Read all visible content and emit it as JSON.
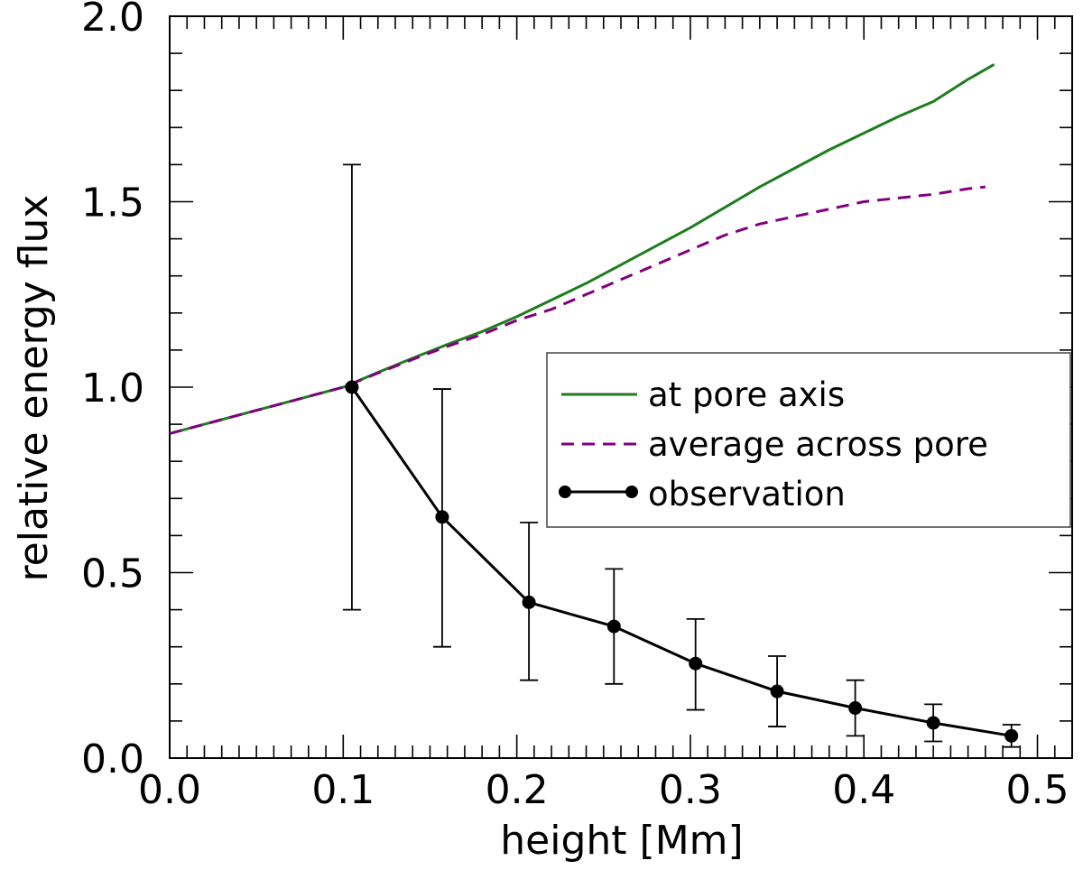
{
  "chart_data": {
    "type": "line",
    "title": "",
    "xlabel": "height [Mm]",
    "ylabel": "relative energy flux",
    "xlim": [
      0.0,
      0.52
    ],
    "ylim": [
      0.0,
      2.0
    ],
    "xticks": [
      0.0,
      0.1,
      0.2,
      0.3,
      0.4,
      0.5
    ],
    "xtick_labels": [
      "0.0",
      "0.1",
      "0.2",
      "0.3",
      "0.4",
      "0.5"
    ],
    "yticks": [
      0.0,
      0.5,
      1.0,
      1.5,
      2.0
    ],
    "ytick_labels": [
      "0.0",
      "0.5",
      "1.0",
      "1.5",
      "2.0"
    ],
    "x_minor_step": 0.01,
    "y_minor_step": 0.1,
    "grid": false,
    "legend_position": "right",
    "series": [
      {
        "name": "at pore axis",
        "color": "#1e7d1e",
        "style": "solid",
        "x": [
          0.0,
          0.02,
          0.04,
          0.06,
          0.08,
          0.1,
          0.12,
          0.14,
          0.16,
          0.18,
          0.2,
          0.22,
          0.24,
          0.26,
          0.28,
          0.3,
          0.32,
          0.34,
          0.36,
          0.38,
          0.4,
          0.42,
          0.44,
          0.46,
          0.475
        ],
        "values": [
          0.875,
          0.9,
          0.925,
          0.95,
          0.975,
          1.0,
          1.04,
          1.078,
          1.115,
          1.15,
          1.19,
          1.235,
          1.28,
          1.33,
          1.38,
          1.43,
          1.485,
          1.54,
          1.59,
          1.64,
          1.685,
          1.73,
          1.77,
          1.83,
          1.87
        ]
      },
      {
        "name": "average across pore",
        "color": "#800080",
        "style": "dashed",
        "x": [
          0.0,
          0.02,
          0.04,
          0.06,
          0.08,
          0.1,
          0.12,
          0.14,
          0.16,
          0.18,
          0.2,
          0.22,
          0.24,
          0.26,
          0.28,
          0.3,
          0.32,
          0.34,
          0.36,
          0.38,
          0.4,
          0.42,
          0.44,
          0.46,
          0.47
        ],
        "values": [
          0.875,
          0.9,
          0.925,
          0.95,
          0.975,
          1.0,
          1.038,
          1.075,
          1.11,
          1.142,
          1.18,
          1.21,
          1.25,
          1.29,
          1.33,
          1.37,
          1.41,
          1.44,
          1.46,
          1.48,
          1.5,
          1.51,
          1.52,
          1.535,
          1.54
        ]
      },
      {
        "name": "observation",
        "color": "#000000",
        "style": "solid-markers",
        "x": [
          0.105,
          0.157,
          0.207,
          0.256,
          0.303,
          0.35,
          0.395,
          0.44,
          0.485
        ],
        "values": [
          1.0,
          0.65,
          0.42,
          0.355,
          0.255,
          0.18,
          0.135,
          0.095,
          0.06
        ],
        "err_low": [
          0.4,
          0.3,
          0.21,
          0.2,
          0.13,
          0.085,
          0.06,
          0.045,
          0.03
        ],
        "err_high": [
          1.6,
          0.995,
          0.635,
          0.51,
          0.375,
          0.275,
          0.21,
          0.145,
          0.09
        ]
      }
    ]
  }
}
